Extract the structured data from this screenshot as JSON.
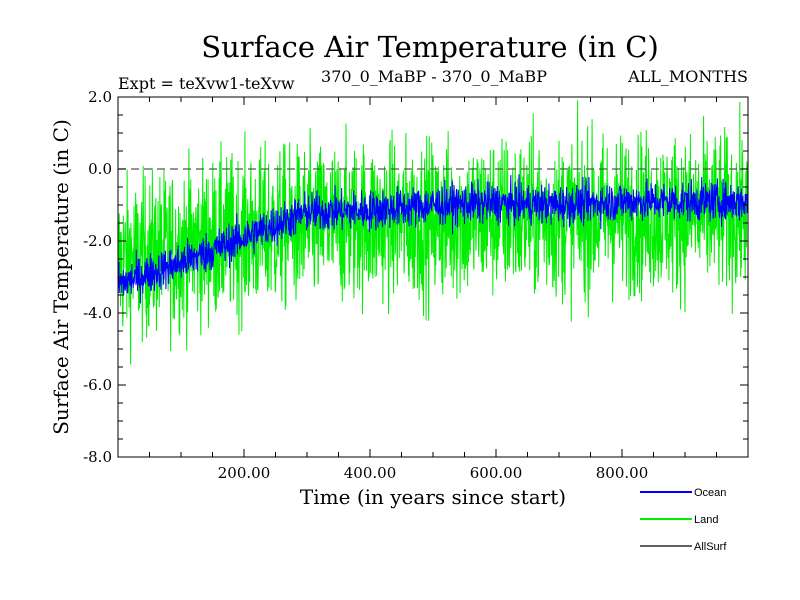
{
  "chart_data": {
    "type": "line",
    "title": "Surface Air Temperature (in C)",
    "subtitle_left": "Expt = teXvw1-teXvw",
    "subtitle_center": "370_0_MaBP - 370_0_MaBP",
    "subtitle_right": "ALL_MONTHS",
    "xlabel": "Time (in years since start)",
    "ylabel": "Surface Air Temperature (in C)",
    "xlim": [
      0,
      1000
    ],
    "ylim": [
      -8,
      2
    ],
    "x_ticks": [
      200,
      400,
      600,
      800
    ],
    "x_tick_labels": [
      "200.00",
      "400.00",
      "600.00",
      "800.00"
    ],
    "y_ticks": [
      -8,
      -6,
      -4,
      -2,
      0,
      2
    ],
    "y_tick_labels": [
      "-8.0",
      "-6.0",
      "-4.0",
      "-2.0",
      "0.0",
      "2.0"
    ],
    "reference_line": {
      "y": 0,
      "style": "dashed"
    },
    "legend_position": "bottom-right",
    "series": [
      {
        "name": "Land",
        "color": "#00ee00",
        "trend_x": [
          0,
          100,
          200,
          300,
          400,
          500,
          600,
          700,
          800,
          900,
          1000
        ],
        "trend_y": [
          -2.6,
          -2.2,
          -1.8,
          -1.6,
          -1.45,
          -1.45,
          -1.3,
          -1.35,
          -1.25,
          -1.25,
          -1.25
        ],
        "spread": 2.2
      },
      {
        "name": "Ocean",
        "color": "#0000ff",
        "trend_x": [
          0,
          100,
          200,
          300,
          400,
          500,
          600,
          700,
          800,
          900,
          1000
        ],
        "trend_y": [
          -3.2,
          -2.6,
          -1.9,
          -1.2,
          -1.15,
          -1.0,
          -0.95,
          -1.0,
          -0.9,
          -0.9,
          -0.9
        ],
        "spread": 0.55
      },
      {
        "name": "AllSurf",
        "color": "#000000",
        "trend_x": [],
        "trend_y": [],
        "spread": 0
      }
    ]
  }
}
